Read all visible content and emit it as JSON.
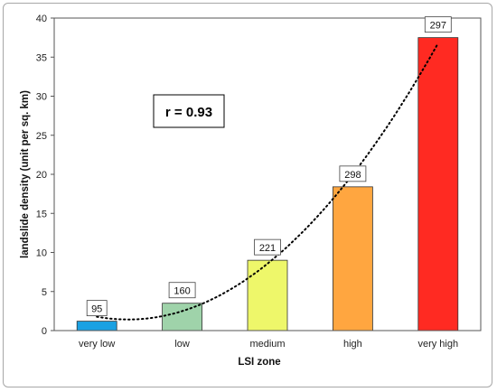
{
  "chart_data": {
    "type": "bar",
    "categories": [
      "very low",
      "low",
      "medium",
      "high",
      "very high"
    ],
    "values": [
      1.2,
      3.5,
      9.0,
      18.4,
      37.5
    ],
    "data_labels": [
      "95",
      "160",
      "221",
      "298",
      "297"
    ],
    "colors": [
      "#1ba1e2",
      "#9fd3aa",
      "#eef76a",
      "#ffa640",
      "#ff2a22"
    ],
    "xlabel": "LSI zone",
    "ylabel": "landslide density (unit per sq. km)",
    "ylim": [
      0,
      40
    ],
    "yticks": [
      0,
      5,
      10,
      15,
      20,
      25,
      30,
      35,
      40
    ],
    "grid": false,
    "trendline": {
      "style": "dotted",
      "type": "polynomial",
      "color": "#000000"
    },
    "annotation": "r = 0.93"
  }
}
